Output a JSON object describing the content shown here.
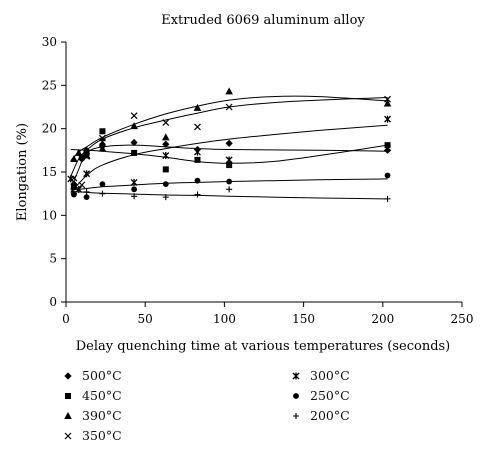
{
  "chart_data": {
    "type": "scatter",
    "title": "Extruded 6069 aluminum alloy",
    "xlabel": "Delay quenching time at various temperatures (seconds)",
    "ylabel": "Elongation (%)",
    "xlim": [
      0,
      250
    ],
    "ylim": [
      0,
      30
    ],
    "xticks": [
      "0",
      "50",
      "100",
      "150",
      "200",
      "250"
    ],
    "yticks": [
      "0",
      "5",
      "10",
      "15",
      "20",
      "25",
      "30"
    ],
    "grid": false,
    "legend_placement": "bottom",
    "series": [
      {
        "name": "500°C",
        "marker": "diamond",
        "x": [
          5,
          10,
          13,
          23,
          43,
          63,
          83,
          103,
          203
        ],
        "y": [
          13.6,
          16.5,
          17.5,
          18.0,
          18.4,
          18.2,
          17.6,
          18.3,
          17.5
        ],
        "fit_x": [
          3,
          8,
          13,
          23,
          43,
          63,
          83,
          103,
          130,
          160,
          203
        ],
        "fit_y": [
          13.0,
          15.3,
          17.2,
          17.9,
          18.1,
          17.9,
          17.7,
          17.6,
          17.55,
          17.5,
          17.4
        ]
      },
      {
        "name": "450°C",
        "marker": "square",
        "x": [
          5,
          10,
          13,
          23,
          43,
          63,
          83,
          103,
          203
        ],
        "y": [
          13.3,
          16.7,
          17.2,
          19.7,
          17.2,
          15.3,
          16.4,
          15.8,
          18.1
        ],
        "fit_x": [
          3,
          13,
          23,
          43,
          63,
          83,
          103,
          130,
          160,
          203
        ],
        "fit_y": [
          17.6,
          17.5,
          17.4,
          17.1,
          16.7,
          16.2,
          16.0,
          16.2,
          16.9,
          18.1
        ]
      },
      {
        "name": "390°C",
        "marker": "triangle",
        "x": [
          5,
          8,
          13,
          23,
          43,
          63,
          83,
          103,
          203
        ],
        "y": [
          16.5,
          17.2,
          16.9,
          17.7,
          20.3,
          19.0,
          22.4,
          24.3,
          22.9
        ],
        "fit_x": [
          3,
          8,
          13,
          23,
          43,
          63,
          83,
          103,
          130,
          160,
          203
        ],
        "fit_y": [
          16.3,
          17.3,
          17.9,
          19.0,
          20.5,
          21.7,
          22.6,
          23.3,
          23.7,
          23.7,
          23.2
        ]
      },
      {
        "name": "350°C",
        "marker": "x",
        "x": [
          5,
          10,
          13,
          23,
          43,
          63,
          83,
          103,
          203
        ],
        "y": [
          14.3,
          13.5,
          16.8,
          18.9,
          21.5,
          20.7,
          20.2,
          22.5,
          23.4
        ],
        "fit_x": [
          3,
          8,
          13,
          23,
          43,
          63,
          83,
          103,
          130,
          160,
          203
        ],
        "fit_y": [
          14.5,
          16.5,
          17.5,
          18.8,
          20.1,
          21.0,
          21.8,
          22.5,
          23.0,
          23.3,
          23.6
        ]
      },
      {
        "name": "300°C",
        "marker": "star",
        "x": [
          3,
          8,
          13,
          23,
          43,
          63,
          83,
          103,
          203
        ],
        "y": [
          14.2,
          13.0,
          14.8,
          18.5,
          13.8,
          16.9,
          17.3,
          16.4,
          21.1
        ],
        "fit_x": [
          3,
          13,
          23,
          43,
          63,
          83,
          103,
          130,
          160,
          203
        ],
        "fit_y": [
          12.6,
          14.6,
          15.8,
          17.0,
          17.7,
          18.3,
          18.8,
          19.3,
          19.8,
          20.4
        ]
      },
      {
        "name": "250°C",
        "marker": "circle",
        "x": [
          5,
          13,
          23,
          43,
          63,
          83,
          103,
          203
        ],
        "y": [
          12.4,
          12.1,
          13.6,
          13.0,
          13.6,
          14.0,
          13.9,
          14.6
        ],
        "fit_x": [
          3,
          13,
          23,
          43,
          63,
          83,
          103,
          130,
          160,
          203
        ],
        "fit_y": [
          12.9,
          13.1,
          13.3,
          13.5,
          13.7,
          13.8,
          13.9,
          14.0,
          14.1,
          14.2
        ]
      },
      {
        "name": "200°C",
        "marker": "plus",
        "x": [
          5,
          13,
          23,
          43,
          63,
          83,
          103,
          203
        ],
        "y": [
          12.5,
          12.7,
          12.5,
          12.2,
          12.1,
          12.4,
          13.0,
          11.9
        ],
        "fit_x": [
          3,
          13,
          23,
          43,
          63,
          83,
          103,
          130,
          160,
          203
        ],
        "fit_y": [
          12.75,
          12.65,
          12.55,
          12.45,
          12.35,
          12.3,
          12.2,
          12.1,
          12.0,
          11.9
        ]
      }
    ]
  }
}
